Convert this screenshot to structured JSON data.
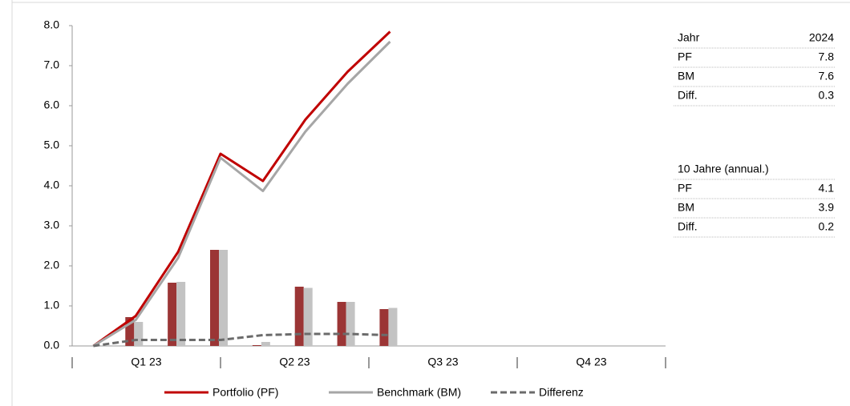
{
  "chart_data": {
    "type": "combo",
    "categories": [
      null,
      null,
      null,
      null,
      null,
      null,
      null,
      null,
      null,
      null,
      null,
      null,
      null,
      null
    ],
    "quarter_labels": [
      "Q1 23",
      "Q2 23",
      "Q3 23",
      "Q4 23"
    ],
    "ylim": [
      0,
      8
    ],
    "yticks": [
      {
        "value": 0,
        "label": "0.0"
      },
      {
        "value": 1,
        "label": "1.0"
      },
      {
        "value": 2,
        "label": "2.0"
      },
      {
        "value": 3,
        "label": "3.0"
      },
      {
        "value": 4,
        "label": "4.0"
      },
      {
        "value": 5,
        "label": "5.0"
      },
      {
        "value": 6,
        "label": "6.0"
      },
      {
        "value": 7,
        "label": "7.0"
      },
      {
        "value": 8,
        "label": "8.0"
      }
    ],
    "bars": [
      {
        "color": "#9b3535",
        "values": [
          null,
          0.72,
          1.58,
          2.4,
          0.02,
          1.48,
          1.1,
          0.92,
          null,
          null,
          null,
          null,
          null,
          null
        ]
      },
      {
        "color": "#c3c3c3",
        "values": [
          null,
          0.6,
          1.6,
          2.4,
          0.1,
          1.45,
          1.1,
          0.95,
          null,
          null,
          null,
          null,
          null,
          null
        ]
      }
    ],
    "series": [
      {
        "name": "Portfolio (PF)",
        "color": "#c00000",
        "dash": false,
        "values": [
          0,
          0.75,
          2.35,
          4.8,
          4.12,
          5.65,
          6.85,
          7.85,
          null,
          null,
          null,
          null,
          null,
          null
        ]
      },
      {
        "name": "Benchmark (BM)",
        "color": "#a6a6a6",
        "dash": false,
        "values": [
          0,
          0.65,
          2.2,
          4.7,
          3.87,
          5.35,
          6.55,
          7.6,
          null,
          null,
          null,
          null,
          null,
          null
        ]
      },
      {
        "name": "Differenz",
        "color": "#6b6b6b",
        "dash": true,
        "values": [
          0,
          0.15,
          0.15,
          0.15,
          0.27,
          0.3,
          0.3,
          0.27,
          null,
          null,
          null,
          null,
          null,
          null
        ]
      }
    ]
  },
  "tables": [
    {
      "header": [
        "Jahr",
        2024
      ],
      "rows": [
        [
          "PF",
          7.8
        ],
        [
          "BM",
          7.6
        ],
        [
          "Diff.",
          0.3
        ]
      ]
    },
    {
      "header": [
        "10 Jahre (annual.)"
      ],
      "rows": [
        [
          "PF",
          4.1
        ],
        [
          "BM",
          3.9
        ],
        [
          "Diff.",
          0.2
        ]
      ]
    }
  ]
}
